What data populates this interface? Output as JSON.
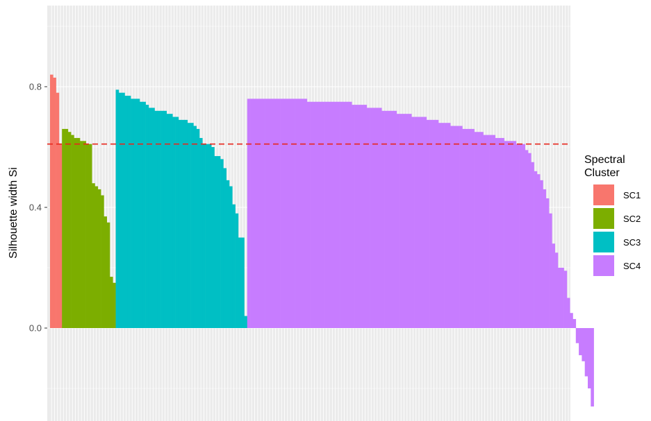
{
  "chart_data": {
    "type": "bar",
    "title": "",
    "xlabel": "",
    "ylabel": "Silhouette width Si",
    "ylim": [
      -0.32,
      1.05
    ],
    "yticks": [
      0.0,
      0.4,
      0.8
    ],
    "ytick_labels": [
      "0.0",
      "0.4",
      "0.8"
    ],
    "grid": true,
    "reference_line": {
      "y": 0.61,
      "style": "dashed",
      "color": "#e8261c"
    },
    "legend": {
      "title_lines": [
        "Spectral",
        "Cluster"
      ],
      "placement": "right",
      "entries": [
        "SC1",
        "SC2",
        "SC3",
        "SC4"
      ]
    },
    "colors": {
      "SC1": "#F8766D",
      "SC2": "#7CAE00",
      "SC3": "#00BFC4",
      "SC4": "#C77CFF"
    },
    "series": [
      {
        "name": "SC1",
        "values": [
          0.84,
          0.83,
          0.78,
          0.61
        ]
      },
      {
        "name": "SC2",
        "values": [
          0.66,
          0.66,
          0.65,
          0.64,
          0.63,
          0.63,
          0.62,
          0.62,
          0.61,
          0.61,
          0.48,
          0.47,
          0.46,
          0.44,
          0.37,
          0.35,
          0.17,
          0.15
        ]
      },
      {
        "name": "SC3",
        "values": [
          0.79,
          0.78,
          0.78,
          0.77,
          0.77,
          0.76,
          0.76,
          0.76,
          0.75,
          0.75,
          0.74,
          0.73,
          0.73,
          0.72,
          0.72,
          0.72,
          0.72,
          0.71,
          0.71,
          0.7,
          0.7,
          0.69,
          0.69,
          0.69,
          0.68,
          0.68,
          0.67,
          0.66,
          0.63,
          0.61,
          0.61,
          0.61,
          0.6,
          0.57,
          0.57,
          0.56,
          0.53,
          0.49,
          0.47,
          0.41,
          0.38,
          0.3,
          0.3,
          0.04
        ]
      },
      {
        "name": "SC4",
        "values": [
          0.76,
          0.76,
          0.76,
          0.76,
          0.76,
          0.76,
          0.76,
          0.76,
          0.76,
          0.76,
          0.76,
          0.76,
          0.76,
          0.76,
          0.76,
          0.76,
          0.76,
          0.76,
          0.76,
          0.76,
          0.75,
          0.75,
          0.75,
          0.75,
          0.75,
          0.75,
          0.75,
          0.75,
          0.75,
          0.75,
          0.75,
          0.75,
          0.75,
          0.75,
          0.75,
          0.74,
          0.74,
          0.74,
          0.74,
          0.74,
          0.73,
          0.73,
          0.73,
          0.73,
          0.73,
          0.72,
          0.72,
          0.72,
          0.72,
          0.72,
          0.71,
          0.71,
          0.71,
          0.71,
          0.71,
          0.7,
          0.7,
          0.7,
          0.7,
          0.7,
          0.69,
          0.69,
          0.69,
          0.69,
          0.68,
          0.68,
          0.68,
          0.68,
          0.67,
          0.67,
          0.67,
          0.67,
          0.66,
          0.66,
          0.66,
          0.66,
          0.65,
          0.65,
          0.65,
          0.64,
          0.64,
          0.64,
          0.64,
          0.63,
          0.63,
          0.63,
          0.62,
          0.62,
          0.62,
          0.62,
          0.61,
          0.61,
          0.61,
          0.59,
          0.58,
          0.55,
          0.52,
          0.51,
          0.49,
          0.46,
          0.43,
          0.38,
          0.28,
          0.25,
          0.2,
          0.2,
          0.19,
          0.1,
          0.05,
          0.03,
          -0.05,
          -0.09,
          -0.11,
          -0.16,
          -0.2,
          -0.26
        ]
      }
    ]
  }
}
